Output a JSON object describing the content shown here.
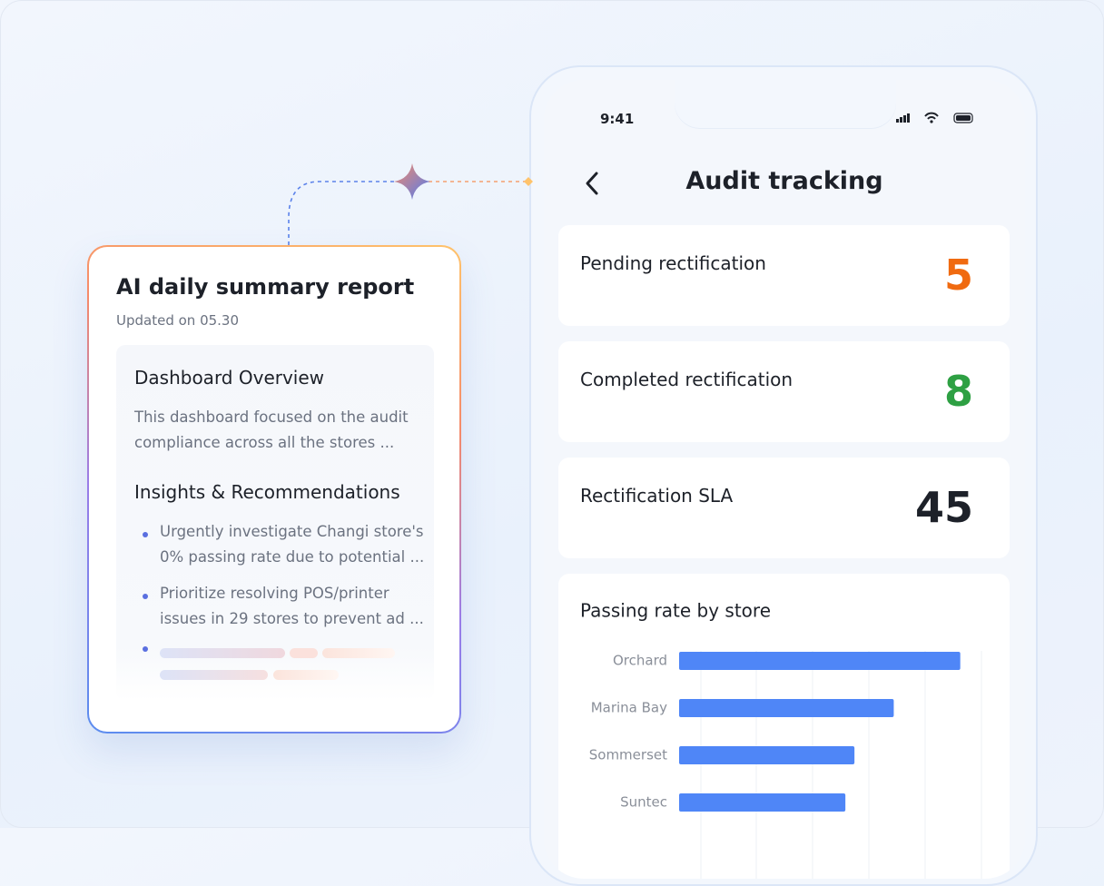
{
  "report": {
    "title": "AI daily summary report",
    "updated": "Updated on 05.30",
    "overview_title": "Dashboard Overview",
    "overview_text": "This dashboard focused on the audit compliance across all the stores ...",
    "insights_title": "Insights & Recommendations",
    "insights": [
      "Urgently investigate Changi store's 0% passing rate due to potential ...",
      "Prioritize resolving POS/printer issues in 29 stores to prevent ad ..."
    ]
  },
  "phone": {
    "time": "9:41",
    "title": "Audit tracking",
    "metrics": [
      {
        "label": "Pending rectification",
        "value": 5,
        "color": "#f06a10"
      },
      {
        "label": "Completed rectification",
        "value": 8,
        "color": "#2ea043"
      },
      {
        "label": "Rectification SLA",
        "value": 45,
        "color": "#1d2129"
      }
    ]
  },
  "chart_data": {
    "type": "bar",
    "orientation": "horizontal",
    "title": "Passing rate by store",
    "categories": [
      "Orchard",
      "Marina Bay",
      "Sommerset",
      "Suntec"
    ],
    "values": [
      93,
      71,
      58,
      55
    ],
    "xlim": [
      0,
      100
    ],
    "color": "#4f86f7"
  }
}
